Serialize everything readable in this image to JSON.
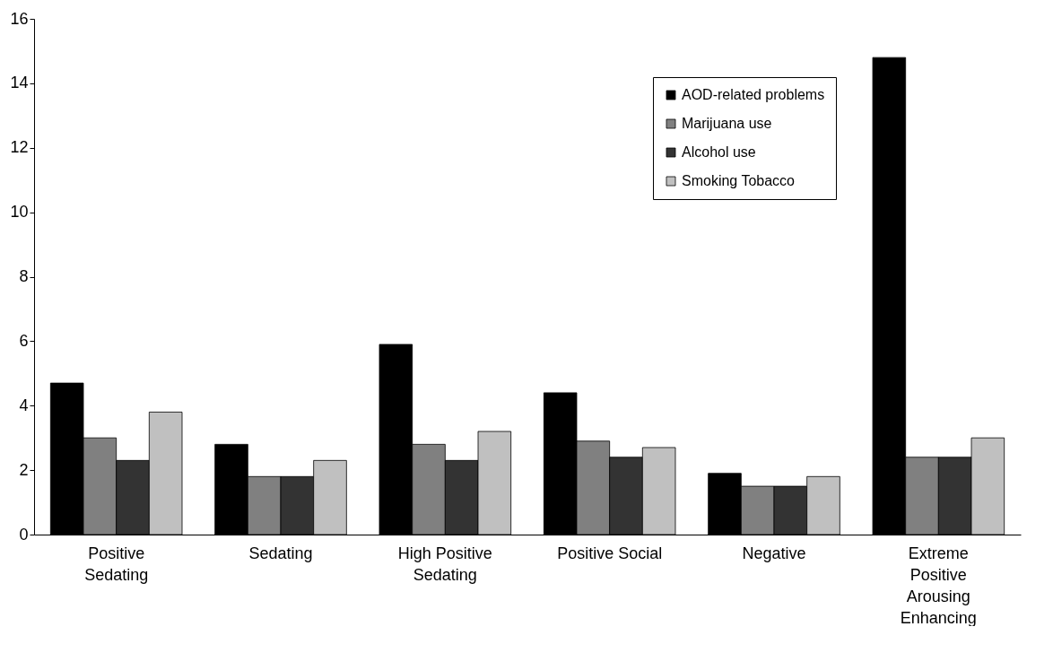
{
  "chart_data": {
    "type": "bar",
    "categories": [
      "Positive Sedating",
      "Sedating",
      "High Positive Sedating",
      "Positive Social",
      "Negative",
      "Extreme Positive Arousing Enhancing"
    ],
    "series": [
      {
        "name": "AOD-related problems",
        "color": "#000000",
        "values": [
          4.7,
          2.8,
          5.9,
          4.4,
          1.9,
          14.8
        ]
      },
      {
        "name": "Marijuana use",
        "color": "#808080",
        "values": [
          3.0,
          1.8,
          2.8,
          2.9,
          1.5,
          2.4
        ]
      },
      {
        "name": "Alcohol use",
        "color": "#333333",
        "values": [
          2.3,
          1.8,
          2.3,
          2.4,
          1.5,
          2.4
        ]
      },
      {
        "name": "Smoking Tobacco",
        "color": "#c0c0c0",
        "values": [
          3.8,
          2.3,
          3.2,
          2.7,
          1.8,
          3.0
        ]
      }
    ],
    "ylim": [
      0,
      16
    ],
    "yticks": [
      0,
      2,
      4,
      6,
      8,
      10,
      12,
      14,
      16
    ],
    "grid": false,
    "legend": "top right"
  }
}
